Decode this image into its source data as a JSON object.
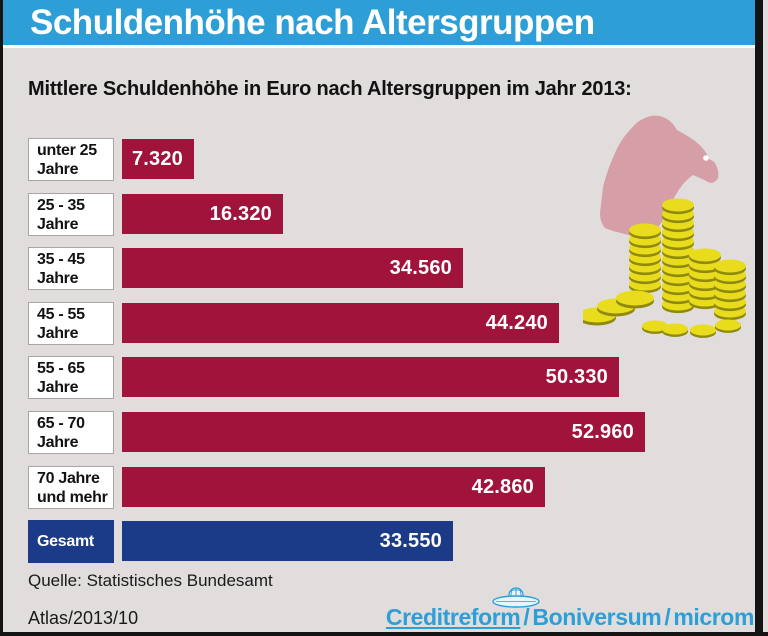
{
  "header": {
    "title": "Schuldenhöhe nach Altersgruppen"
  },
  "subtitle": "Mittlere Schuldenhöhe in Euro nach Altersgruppen im Jahr 2013:",
  "chart_data": {
    "type": "bar",
    "orientation": "horizontal",
    "title": "Mittlere Schuldenhöhe in Euro nach Altersgruppen im Jahr 2013",
    "xlabel": "Euro",
    "xlim": [
      0,
      53000
    ],
    "grid": false,
    "legend": false,
    "categories": [
      "unter 25 Jahre",
      "25 - 35 Jahre",
      "35 - 45 Jahre",
      "45 - 55 Jahre",
      "55 - 65 Jahre",
      "65 - 70 Jahre",
      "70 Jahre und mehr",
      "Gesamt"
    ],
    "label_lines": [
      [
        "unter 25",
        "Jahre"
      ],
      [
        "25 - 35",
        "Jahre"
      ],
      [
        "35 - 45",
        "Jahre"
      ],
      [
        "45 - 55",
        "Jahre"
      ],
      [
        "55 - 65",
        "Jahre"
      ],
      [
        "65 - 70",
        "Jahre"
      ],
      [
        "70 Jahre",
        "und mehr"
      ],
      [
        "Gesamt"
      ]
    ],
    "values": [
      7320,
      16320,
      34560,
      44240,
      50330,
      52960,
      42860,
      33550
    ],
    "value_labels": [
      "7.320",
      "16.320",
      "34.560",
      "44.240",
      "50.330",
      "52.960",
      "42.860",
      "33.550"
    ],
    "total_row_index": 7,
    "bar_color": "#A0133A",
    "total_color": "#1B3A87"
  },
  "illustration": {
    "description": "vulture perched over stacks of gold coins",
    "vulture_color": "#D69FA8",
    "coin_color": "#E9DC1D",
    "coin_shadow_color": "#8F8A0E"
  },
  "footer": {
    "source": "Quelle: Statistisches Bundesamt",
    "atlas_ref": "Atlas/2013/10",
    "brand_parts": [
      "Creditreform",
      "Boniversum",
      "microm"
    ],
    "brand_separator": "/"
  },
  "colors": {
    "header_bg": "#2E9ED6",
    "background": "#E0DDDC",
    "border": "#141414",
    "brand_blue": "#2E9ED6",
    "text": "#121212"
  }
}
